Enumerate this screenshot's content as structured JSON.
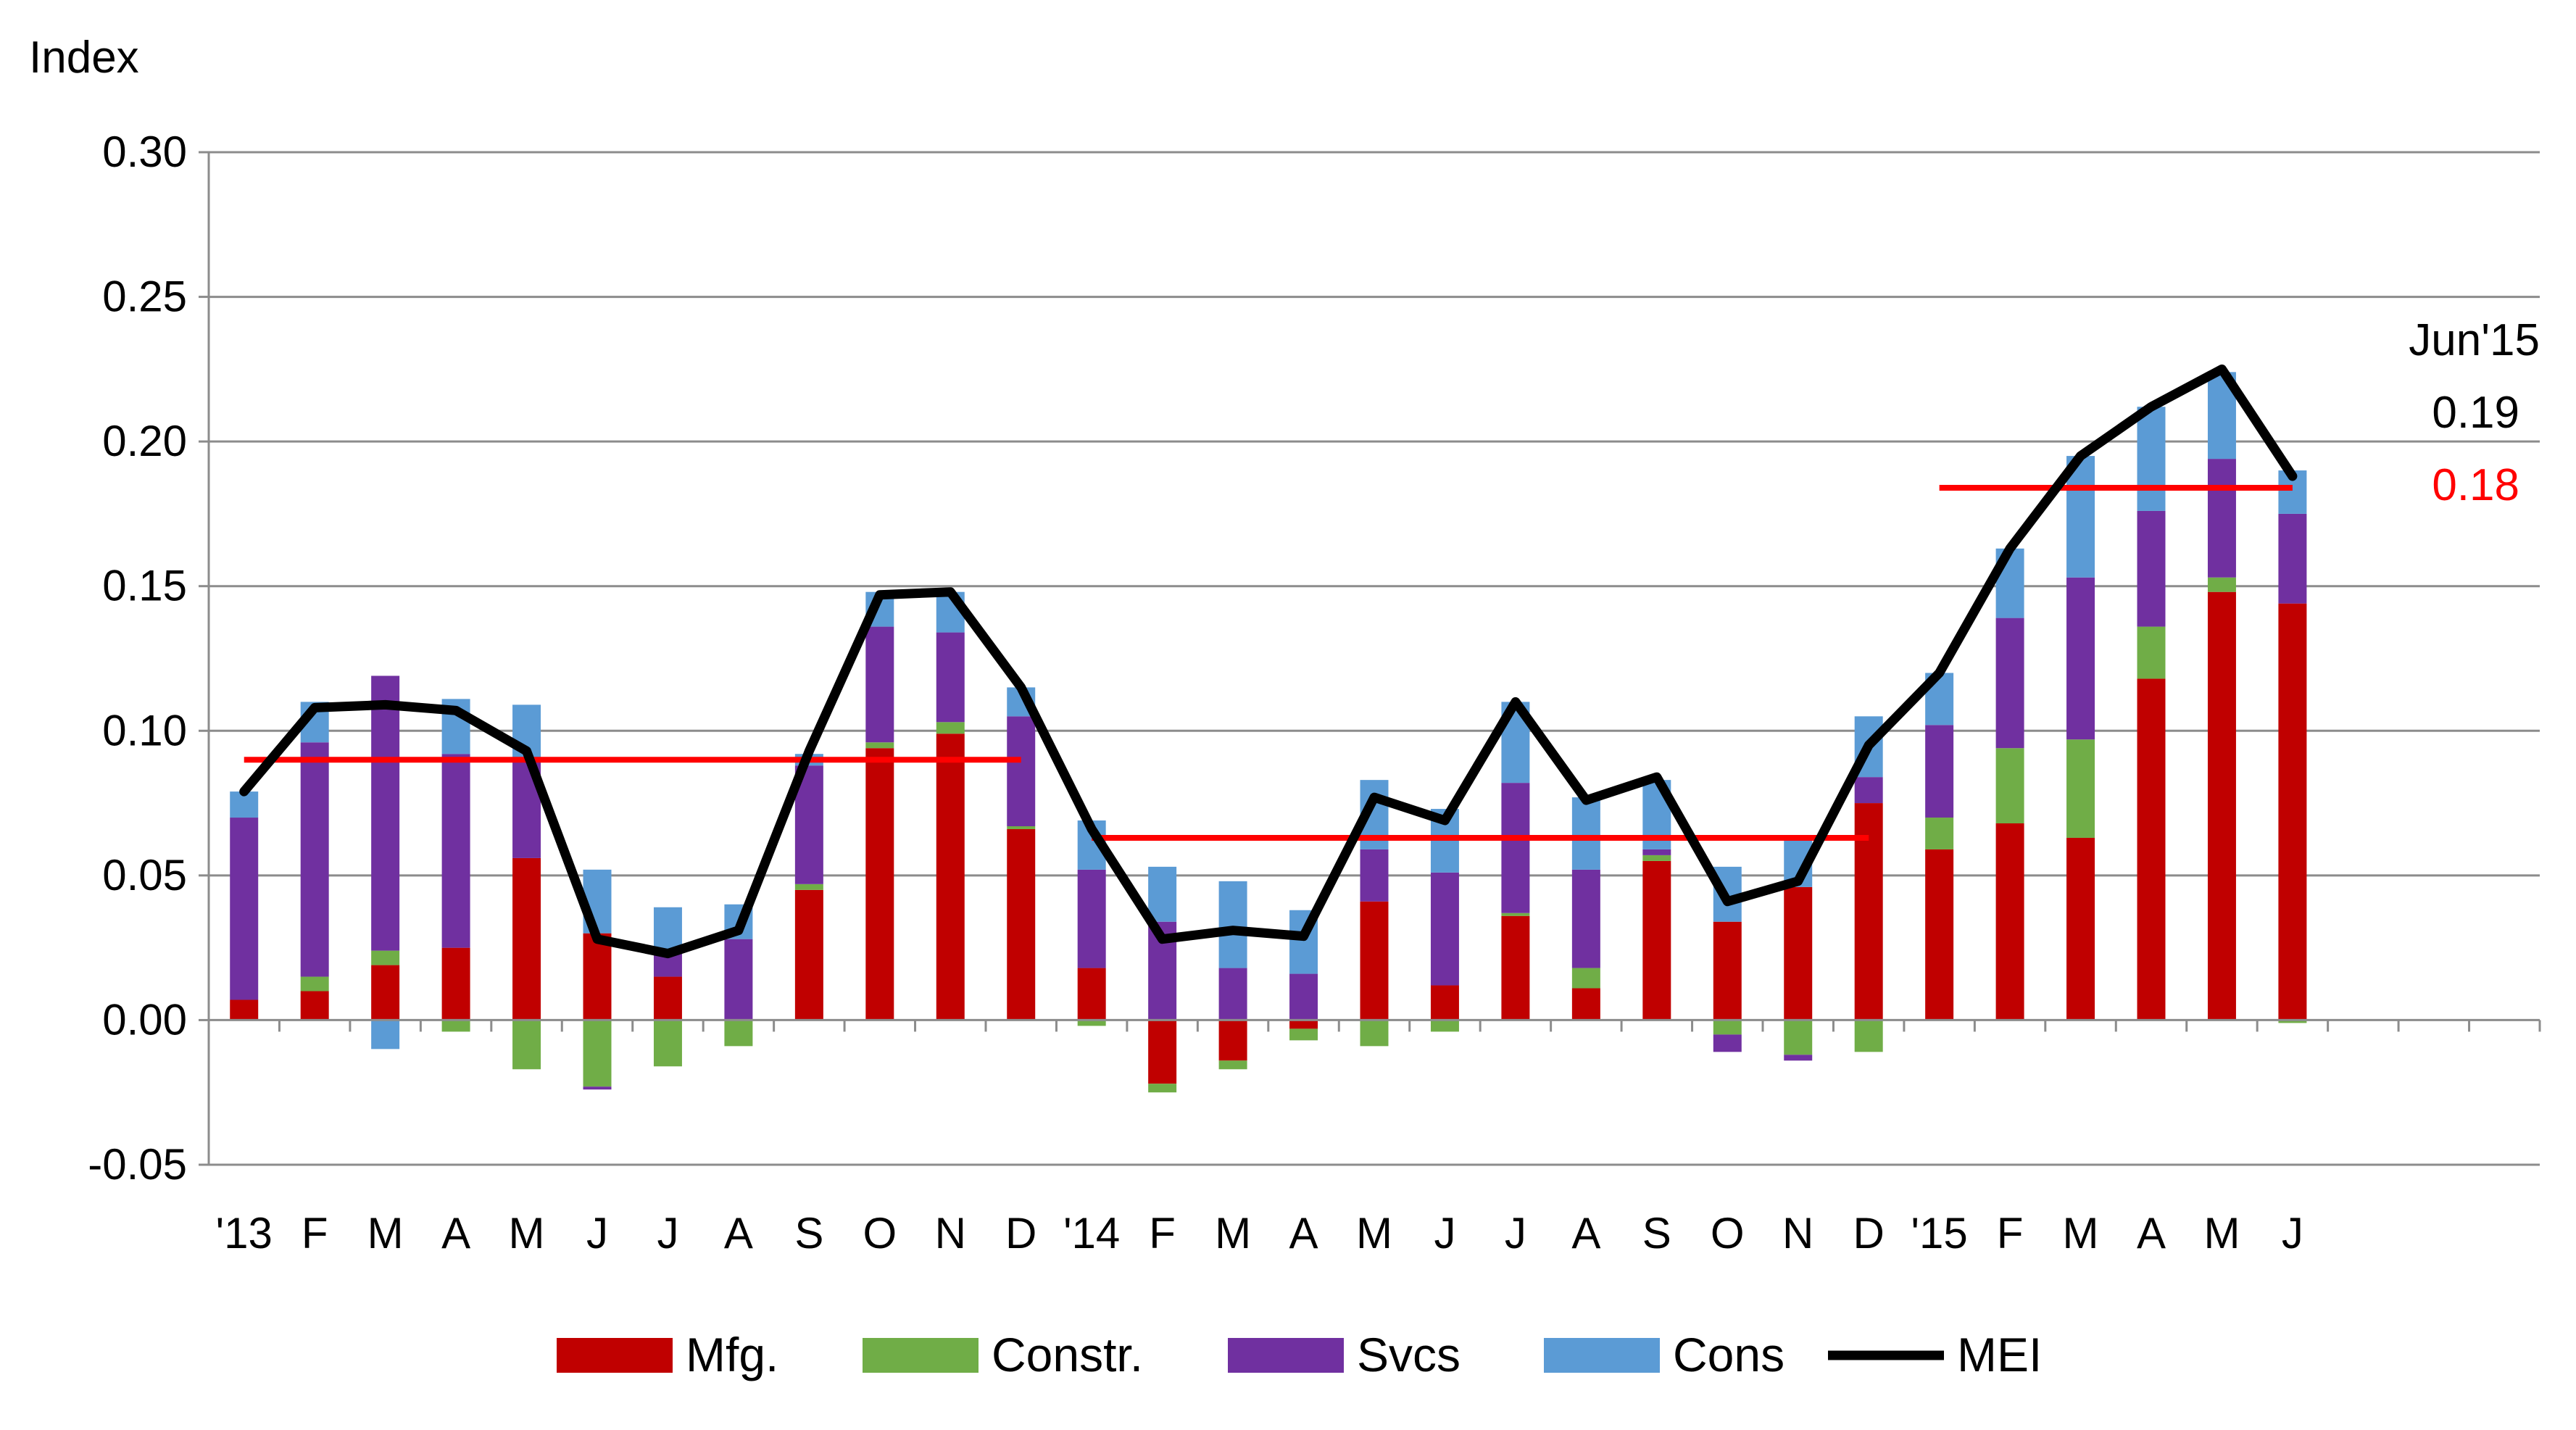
{
  "chart_data": {
    "type": "bar",
    "stacked": true,
    "title": "",
    "xlabel": "",
    "ylabel": "Index",
    "ylim": [
      -0.05,
      0.3
    ],
    "yticks": [
      "-0.05",
      "0.00",
      "0.05",
      "0.10",
      "0.15",
      "0.20",
      "0.25",
      "0.30"
    ],
    "ytick_values": [
      -0.05,
      0,
      0.05,
      0.1,
      0.15,
      0.2,
      0.25,
      0.3
    ],
    "grid": true,
    "legend_position": "bottom",
    "categories": [
      "'13",
      "F",
      "M",
      "A",
      "M",
      "J",
      "J",
      "A",
      "S",
      "O",
      "N",
      "D",
      "'14",
      "F",
      "M",
      "A",
      "M",
      "J",
      "J",
      "A",
      "S",
      "O",
      "N",
      "D",
      "'15",
      "F",
      "M",
      "A",
      "M",
      "J"
    ],
    "series": [
      {
        "name": "Mfg.",
        "color": "#c00000",
        "values": [
          0.007,
          0.01,
          0.019,
          0.025,
          0.056,
          0.03,
          0.015,
          0,
          0.045,
          0.094,
          0.099,
          0.066,
          0.018,
          -0.022,
          -0.014,
          -0.003,
          0.041,
          0.012,
          0.036,
          0.011,
          0.055,
          0.034,
          0.046,
          0.075,
          0.059,
          0.068,
          0.063,
          0.118,
          0.148,
          0.144
        ]
      },
      {
        "name": "Constr.",
        "color": "#70ad47",
        "values": [
          0,
          0.005,
          0.005,
          -0.004,
          -0.017,
          -0.023,
          -0.016,
          -0.009,
          0.002,
          0.002,
          0.004,
          0.001,
          -0.002,
          -0.003,
          -0.003,
          -0.004,
          -0.009,
          -0.004,
          0.001,
          0.007,
          0.002,
          -0.005,
          -0.012,
          -0.011,
          0.011,
          0.026,
          0.034,
          0.018,
          0.005,
          -0.001
        ]
      },
      {
        "name": "Svcs",
        "color": "#7030a0",
        "values": [
          0.063,
          0.081,
          0.095,
          0.067,
          0.034,
          -0.001,
          0.009,
          0.028,
          0.041,
          0.04,
          0.031,
          0.038,
          0.034,
          0.034,
          0.018,
          0.016,
          0.018,
          0.039,
          0.045,
          0.034,
          0.002,
          -0.006,
          -0.002,
          0.009,
          0.032,
          0.045,
          0.056,
          0.04,
          0.041,
          0.031
        ]
      },
      {
        "name": "Cons",
        "color": "#5b9bd5",
        "values": [
          0.009,
          0.014,
          -0.01,
          0.019,
          0.019,
          0.022,
          0.015,
          0.012,
          0.004,
          0.012,
          0.014,
          0.01,
          0.017,
          0.019,
          0.03,
          0.022,
          0.024,
          0.022,
          0.028,
          0.025,
          0.024,
          0.019,
          0.017,
          0.021,
          0.018,
          0.024,
          0.042,
          0.036,
          0.03,
          0.015
        ]
      },
      {
        "name": "MEI",
        "type": "line",
        "color": "#000000",
        "values": [
          0.079,
          0.108,
          0.109,
          0.107,
          0.093,
          0.028,
          0.023,
          0.031,
          0.093,
          0.147,
          0.148,
          0.115,
          0.066,
          0.028,
          0.031,
          0.029,
          0.077,
          0.069,
          0.11,
          0.076,
          0.084,
          0.041,
          0.048,
          0.095,
          0.12,
          0.163,
          0.195,
          0.212,
          0.225,
          0.188
        ]
      }
    ],
    "average_lines": [
      {
        "value": 0.09,
        "from": 0,
        "to": 11,
        "color": "#ff0000"
      },
      {
        "value": 0.063,
        "from": 12,
        "to": 23,
        "color": "#ff0000"
      },
      {
        "value": 0.184,
        "from": 24,
        "to": 29,
        "color": "#ff0000"
      }
    ],
    "annotations": [
      {
        "text": "Jun'15",
        "color": "#000000"
      },
      {
        "text": "0.19",
        "color": "#000000"
      },
      {
        "text": "0.18",
        "color": "#ff0000"
      }
    ]
  }
}
